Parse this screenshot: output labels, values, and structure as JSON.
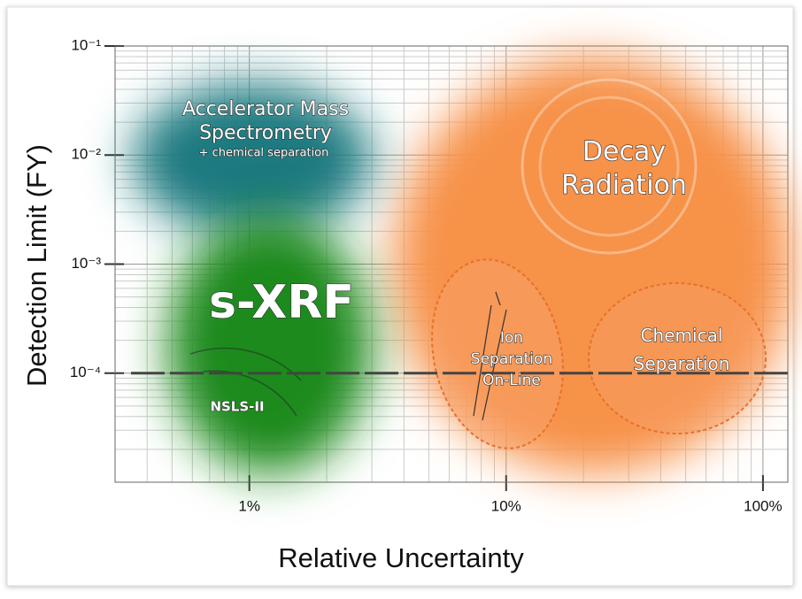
{
  "chart_data": {
    "type": "region-map",
    "x_label": "Relative Uncertainty",
    "y_label": "Detection Limit (FY)",
    "xlim": [
      0.3,
      125
    ],
    "ylim": [
      1e-05,
      0.1
    ],
    "x_log": true,
    "y_log": true,
    "grid": true,
    "xticks": [
      {
        "value": 1,
        "label": "1%"
      },
      {
        "value": 10,
        "label": "10%"
      },
      {
        "value": 100,
        "label": "100%"
      }
    ],
    "yticks": [
      {
        "value": 0.1,
        "label": "10⁻¹"
      },
      {
        "value": 0.01,
        "label": "10⁻²"
      },
      {
        "value": 0.001,
        "label": "10⁻³"
      },
      {
        "value": 0.0001,
        "label": "10⁻⁴"
      }
    ],
    "threshold": 0.0001,
    "regions": [
      {
        "name": "Accelerator Mass Spectrometry",
        "note": "+ chemical separation",
        "color": "#1d7a80"
      },
      {
        "name": "s-XRF",
        "note": "NSLS-II",
        "color": "#1e8a1e"
      },
      {
        "name": "Decay Radiation",
        "color": "#f7924a"
      },
      {
        "name": "Ion Separation On-Line",
        "color": "#f7924a"
      },
      {
        "name": "Chemical Separation",
        "color": "#f7924a"
      }
    ]
  }
}
